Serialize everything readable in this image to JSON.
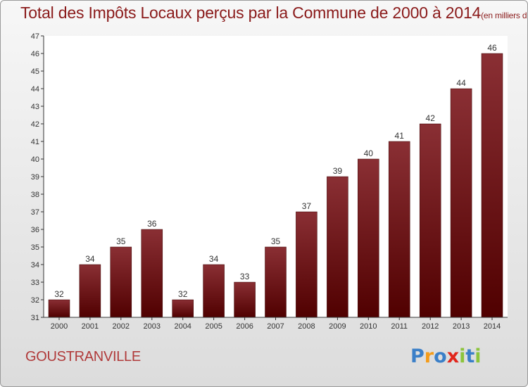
{
  "title": "Total des Impôts Locaux perçus par la Commune de 2000 à 2014",
  "title_unit": "(en milliers d'€)",
  "commune": "GOUSTRANVILLE",
  "logo": {
    "letters": [
      "P",
      "r",
      "o",
      "x",
      "i",
      "t",
      "i"
    ],
    "colors": [
      "#3a7fc8",
      "#f39c1b",
      "#3a7fc8",
      "#e1261c",
      "#8cc43c",
      "#3a7fc8",
      "#8cc43c"
    ]
  },
  "colors": {
    "bar_top": "#8a2f34",
    "bar_bottom": "#500000",
    "title": "#8a1a1a",
    "commune": "#b03a3a"
  },
  "chart_data": {
    "type": "bar",
    "categories": [
      "2000",
      "2001",
      "2002",
      "2003",
      "2004",
      "2005",
      "2006",
      "2007",
      "2008",
      "2009",
      "2010",
      "2011",
      "2012",
      "2013",
      "2014"
    ],
    "values": [
      32,
      34,
      35,
      36,
      32,
      34,
      33,
      35,
      37,
      39,
      40,
      41,
      42,
      44,
      46
    ],
    "ylim": [
      31,
      47
    ],
    "yticks": [
      31,
      32,
      33,
      34,
      35,
      36,
      37,
      38,
      39,
      40,
      41,
      42,
      43,
      44,
      45,
      46,
      47
    ],
    "grid": false,
    "data_labels": true
  }
}
